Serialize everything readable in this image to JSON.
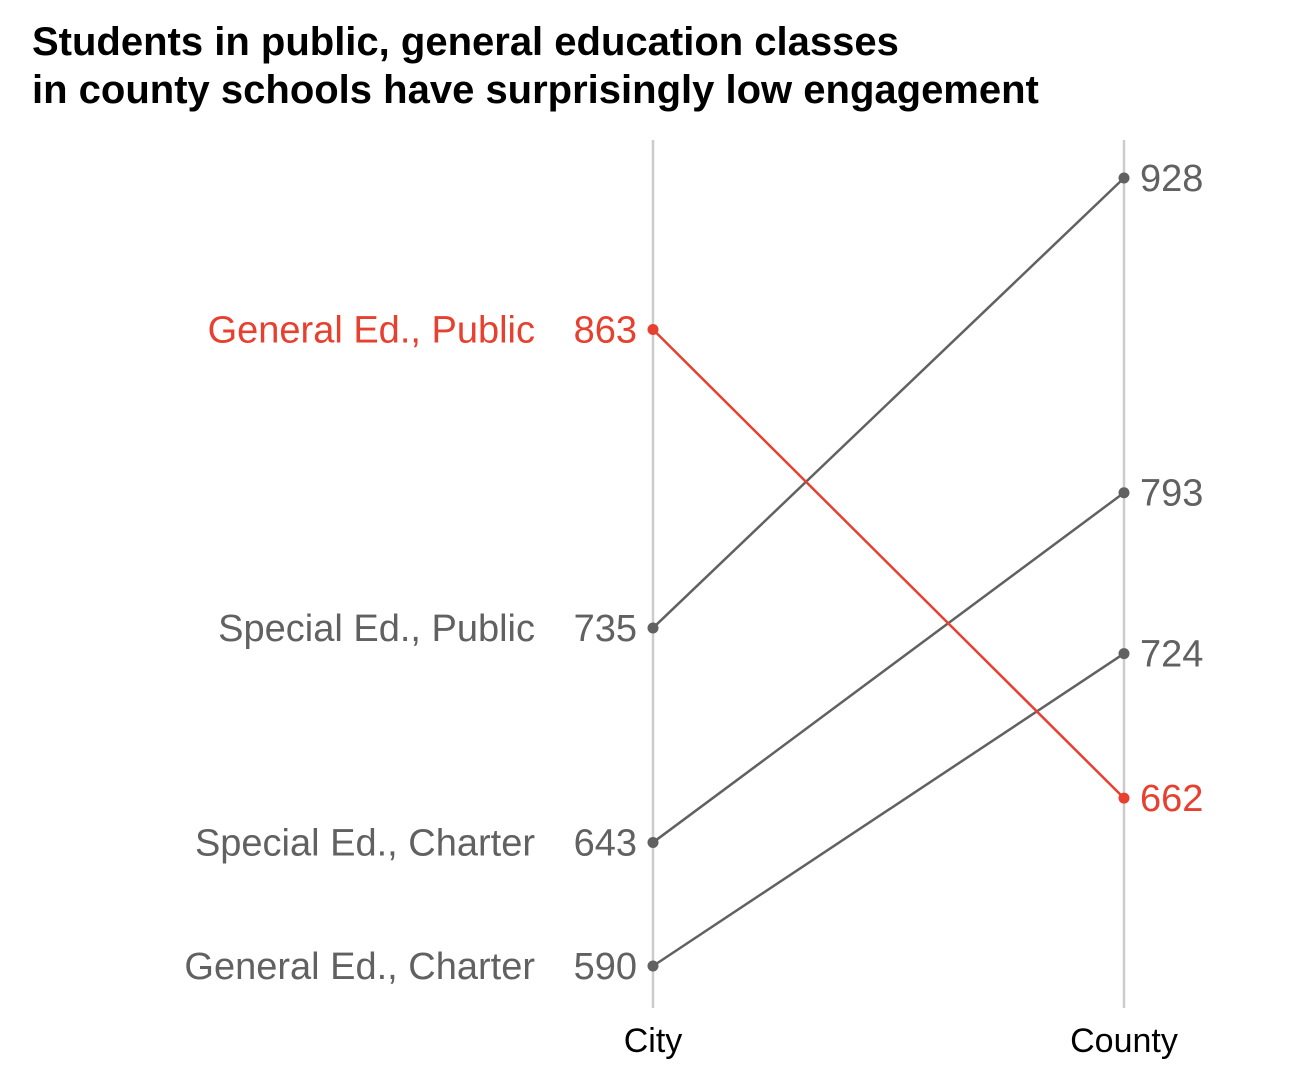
{
  "chart_data": {
    "type": "line",
    "title_lines": [
      "Students in public, general education classes",
      "in county schools have surprisingly low engagement"
    ],
    "x": [
      "City",
      "County"
    ],
    "ylim": [
      590,
      928
    ],
    "grid": "vertical lines at each x category",
    "legend": "none (series labelled directly at left end)",
    "highlight_color": "#e8402f",
    "default_color": "#616161",
    "axis_line_color": "#cccccc",
    "series": [
      {
        "name": "General Ed., Public",
        "values": [
          863,
          662
        ],
        "highlight": true
      },
      {
        "name": "Special Ed., Public",
        "values": [
          735,
          928
        ],
        "highlight": false
      },
      {
        "name": "Special Ed., Charter",
        "values": [
          643,
          793
        ],
        "highlight": false
      },
      {
        "name": "General Ed., Charter",
        "values": [
          590,
          724
        ],
        "highlight": false
      }
    ]
  }
}
